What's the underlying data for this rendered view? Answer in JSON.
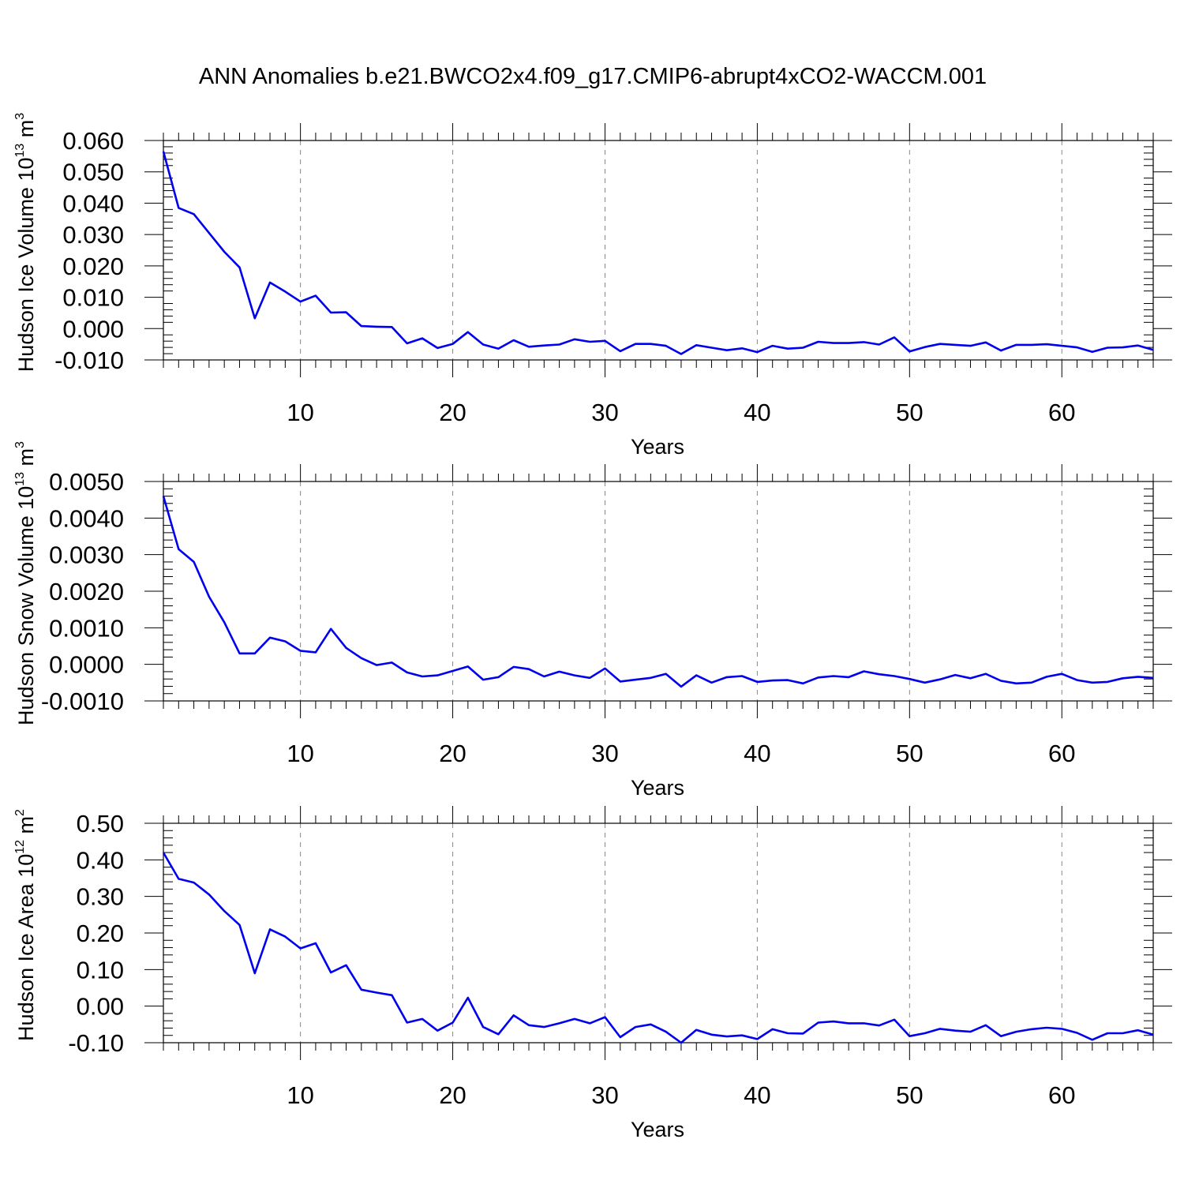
{
  "title": "ANN Anomalies b.e21.BWCO2x4.f09_g17.CMIP6-abrupt4xCO2-WACCM.001",
  "colors": {
    "line": "#0000ee",
    "axis": "#000000",
    "grid": "#888888"
  },
  "chart_data": [
    {
      "type": "line",
      "xlabel": "Years",
      "ylabel": {
        "text": "Hudson Ice Volume 10",
        "sup": "13",
        "unit": " m",
        "unit_sup": "3"
      },
      "xlim": [
        1,
        66
      ],
      "ylim": [
        -0.01,
        0.06
      ],
      "x_ticks": [
        10,
        20,
        30,
        40,
        50,
        60
      ],
      "x_tick_labels": [
        "10",
        "20",
        "30",
        "40",
        "50",
        "60"
      ],
      "y_ticks": [
        -0.01,
        0.0,
        0.01,
        0.02,
        0.03,
        0.04,
        0.05,
        0.06
      ],
      "y_tick_labels": [
        "-0.010",
        "0.000",
        "0.010",
        "0.020",
        "0.030",
        "0.040",
        "0.050",
        "0.060"
      ],
      "grid": "vertical dashed",
      "x": [
        1,
        2,
        3,
        4,
        5,
        6,
        7,
        8,
        9,
        10,
        11,
        12,
        13,
        14,
        15,
        16,
        17,
        18,
        19,
        20,
        21,
        22,
        23,
        24,
        25,
        26,
        27,
        28,
        29,
        30,
        31,
        32,
        33,
        34,
        35,
        36,
        37,
        38,
        39,
        40,
        41,
        42,
        43,
        44,
        45,
        46,
        47,
        48,
        49,
        50,
        51,
        52,
        53,
        54,
        55,
        56,
        57,
        58,
        59,
        60,
        61,
        62,
        63,
        64,
        65,
        66
      ],
      "values": [
        0.0565,
        0.0385,
        0.0365,
        0.0305,
        0.0245,
        0.0195,
        0.0033,
        0.0147,
        0.0118,
        0.0086,
        0.0105,
        0.0051,
        0.0052,
        0.0008,
        0.0006,
        0.0005,
        -0.0047,
        -0.0031,
        -0.0062,
        -0.0049,
        -0.0011,
        -0.0051,
        -0.0064,
        -0.0037,
        -0.0058,
        -0.0054,
        -0.0051,
        -0.0034,
        -0.0042,
        -0.0039,
        -0.0072,
        -0.0049,
        -0.0049,
        -0.0055,
        -0.0081,
        -0.0053,
        -0.0061,
        -0.0069,
        -0.0063,
        -0.0075,
        -0.0055,
        -0.0064,
        -0.0061,
        -0.0042,
        -0.0046,
        -0.0046,
        -0.0043,
        -0.0051,
        -0.0028,
        -0.0073,
        -0.0059,
        -0.0049,
        -0.0052,
        -0.0055,
        -0.0044,
        -0.007,
        -0.0052,
        -0.0052,
        -0.005,
        -0.0055,
        -0.006,
        -0.0074,
        -0.0061,
        -0.006,
        -0.0054,
        -0.0068
      ]
    },
    {
      "type": "line",
      "xlabel": "Years",
      "ylabel": {
        "text": "Hudson Snow Volume 10",
        "sup": "13",
        "unit": " m",
        "unit_sup": "3"
      },
      "xlim": [
        1,
        66
      ],
      "ylim": [
        -0.001,
        0.005
      ],
      "x_ticks": [
        10,
        20,
        30,
        40,
        50,
        60
      ],
      "x_tick_labels": [
        "10",
        "20",
        "30",
        "40",
        "50",
        "60"
      ],
      "y_ticks": [
        -0.001,
        0.0,
        0.001,
        0.002,
        0.003,
        0.004,
        0.005
      ],
      "y_tick_labels": [
        "-0.0010",
        "0.0000",
        "0.0010",
        "0.0020",
        "0.0030",
        "0.0040",
        "0.0050"
      ],
      "grid": "vertical dashed",
      "x": [
        1,
        2,
        3,
        4,
        5,
        6,
        7,
        8,
        9,
        10,
        11,
        12,
        13,
        14,
        15,
        16,
        17,
        18,
        19,
        20,
        21,
        22,
        23,
        24,
        25,
        26,
        27,
        28,
        29,
        30,
        31,
        32,
        33,
        34,
        35,
        36,
        37,
        38,
        39,
        40,
        41,
        42,
        43,
        44,
        45,
        46,
        47,
        48,
        49,
        50,
        51,
        52,
        53,
        54,
        55,
        56,
        57,
        58,
        59,
        60,
        61,
        62,
        63,
        64,
        65,
        66
      ],
      "values": [
        0.0046,
        0.00315,
        0.0028,
        0.00185,
        0.00115,
        0.0003,
        0.0003,
        0.00073,
        0.00063,
        0.00037,
        0.00033,
        0.00097,
        0.00045,
        0.00017,
        -2e-05,
        5e-05,
        -0.00022,
        -0.00033,
        -0.0003,
        -0.00018,
        -6e-05,
        -0.00042,
        -0.00035,
        -7e-05,
        -0.00013,
        -0.00033,
        -0.0002,
        -0.0003,
        -0.00037,
        -0.00011,
        -0.00047,
        -0.00042,
        -0.00037,
        -0.00026,
        -0.00061,
        -0.0003,
        -0.0005,
        -0.00035,
        -0.00032,
        -0.00048,
        -0.00044,
        -0.00043,
        -0.00052,
        -0.00036,
        -0.00032,
        -0.00035,
        -0.00019,
        -0.00027,
        -0.00032,
        -0.0004,
        -0.0005,
        -0.00041,
        -0.00029,
        -0.00038,
        -0.00026,
        -0.00045,
        -0.00052,
        -0.0005,
        -0.00034,
        -0.00026,
        -0.00043,
        -0.0005,
        -0.00048,
        -0.00038,
        -0.00034,
        -0.00037
      ]
    },
    {
      "type": "line",
      "xlabel": "Years",
      "ylabel": {
        "text": "Hudson Ice Area 10",
        "sup": "12",
        "unit": " m",
        "unit_sup": "2"
      },
      "xlim": [
        1,
        66
      ],
      "ylim": [
        -0.1,
        0.5
      ],
      "x_ticks": [
        10,
        20,
        30,
        40,
        50,
        60
      ],
      "x_tick_labels": [
        "10",
        "20",
        "30",
        "40",
        "50",
        "60"
      ],
      "y_ticks": [
        -0.1,
        0.0,
        0.1,
        0.2,
        0.3,
        0.4,
        0.5
      ],
      "y_tick_labels": [
        "-0.10",
        "0.00",
        "0.10",
        "0.20",
        "0.30",
        "0.40",
        "0.50"
      ],
      "grid": "vertical dashed",
      "x": [
        1,
        2,
        3,
        4,
        5,
        6,
        7,
        8,
        9,
        10,
        11,
        12,
        13,
        14,
        15,
        16,
        17,
        18,
        19,
        20,
        21,
        22,
        23,
        24,
        25,
        26,
        27,
        28,
        29,
        30,
        31,
        32,
        33,
        34,
        35,
        36,
        37,
        38,
        39,
        40,
        41,
        42,
        43,
        44,
        45,
        46,
        47,
        48,
        49,
        50,
        51,
        52,
        53,
        54,
        55,
        56,
        57,
        58,
        59,
        60,
        61,
        62,
        63,
        64,
        65,
        66
      ],
      "values": [
        0.42,
        0.348,
        0.338,
        0.305,
        0.26,
        0.222,
        0.09,
        0.21,
        0.19,
        0.158,
        0.172,
        0.092,
        0.112,
        0.045,
        0.037,
        0.03,
        -0.045,
        -0.035,
        -0.067,
        -0.045,
        0.023,
        -0.057,
        -0.077,
        -0.025,
        -0.052,
        -0.057,
        -0.047,
        -0.035,
        -0.047,
        -0.03,
        -0.085,
        -0.057,
        -0.05,
        -0.07,
        -0.1,
        -0.065,
        -0.078,
        -0.083,
        -0.08,
        -0.09,
        -0.063,
        -0.074,
        -0.075,
        -0.045,
        -0.042,
        -0.047,
        -0.047,
        -0.053,
        -0.037,
        -0.082,
        -0.074,
        -0.062,
        -0.067,
        -0.07,
        -0.052,
        -0.082,
        -0.07,
        -0.063,
        -0.059,
        -0.062,
        -0.073,
        -0.092,
        -0.074,
        -0.074,
        -0.066,
        -0.078
      ]
    }
  ]
}
